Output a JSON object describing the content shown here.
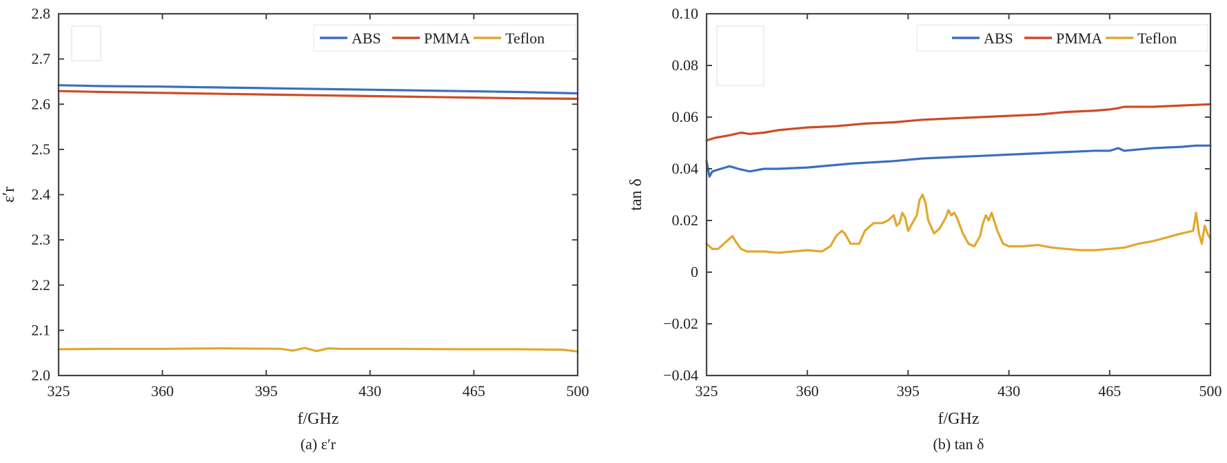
{
  "colors": {
    "abs": "#3a6fbf",
    "pmma": "#cf4a26",
    "teflon": "#e2a72e"
  },
  "chart_data": [
    {
      "type": "line",
      "caption": "(a) ε′r",
      "xlabel": "f/GHz",
      "ylabel": "ε′r",
      "xlim": [
        325,
        500
      ],
      "ylim": [
        2.0,
        2.8
      ],
      "xticks": [
        325,
        360,
        395,
        430,
        465,
        500
      ],
      "yticks": [
        2.0,
        2.1,
        2.2,
        2.3,
        2.4,
        2.5,
        2.6,
        2.7,
        2.8
      ],
      "ytick_labels": [
        "2.0",
        "2.1",
        "2.2",
        "2.3",
        "2.4",
        "2.5",
        "2.6",
        "2.7",
        "2.8"
      ],
      "legend": {
        "position": "top-right",
        "entries": [
          "ABS",
          "PMMA",
          "Teflon"
        ]
      },
      "grid": false,
      "series": [
        {
          "name": "ABS",
          "color": "#3a6fbf",
          "x": [
            325,
            340,
            360,
            380,
            400,
            420,
            440,
            460,
            480,
            500
          ],
          "y": [
            2.642,
            2.64,
            2.639,
            2.637,
            2.635,
            2.633,
            2.631,
            2.629,
            2.627,
            2.624
          ]
        },
        {
          "name": "PMMA",
          "color": "#cf4a26",
          "x": [
            325,
            340,
            360,
            380,
            400,
            420,
            440,
            460,
            480,
            500
          ],
          "y": [
            2.629,
            2.627,
            2.625,
            2.623,
            2.621,
            2.619,
            2.617,
            2.615,
            2.613,
            2.612
          ]
        },
        {
          "name": "Teflon",
          "color": "#e2a72e",
          "x": [
            325,
            340,
            360,
            380,
            400,
            404,
            408,
            412,
            416,
            420,
            440,
            460,
            480,
            495,
            500
          ],
          "y": [
            2.058,
            2.059,
            2.059,
            2.06,
            2.059,
            2.055,
            2.061,
            2.054,
            2.06,
            2.059,
            2.059,
            2.058,
            2.058,
            2.057,
            2.053
          ]
        }
      ]
    },
    {
      "type": "line",
      "caption": "(b) tan δ",
      "xlabel": "f/GHz",
      "ylabel": "tan δ",
      "xlim": [
        325,
        500
      ],
      "ylim": [
        -0.04,
        0.1
      ],
      "xticks": [
        325,
        360,
        395,
        430,
        465,
        500
      ],
      "yticks": [
        -0.04,
        -0.02,
        0,
        0.02,
        0.04,
        0.06,
        0.08,
        0.1
      ],
      "ytick_labels": [
        "−0.04",
        "−0.02",
        "0",
        "0.02",
        "0.04",
        "0.06",
        "0.08",
        "0.10"
      ],
      "legend": {
        "position": "top-right",
        "entries": [
          "ABS",
          "PMMA",
          "Teflon"
        ]
      },
      "grid": false,
      "series": [
        {
          "name": "ABS",
          "color": "#3a6fbf",
          "x": [
            325,
            326,
            327,
            330,
            333,
            336,
            340,
            345,
            350,
            360,
            375,
            390,
            400,
            410,
            420,
            430,
            440,
            450,
            460,
            465,
            468,
            470,
            480,
            490,
            495,
            500
          ],
          "y": [
            0.043,
            0.037,
            0.039,
            0.04,
            0.041,
            0.04,
            0.039,
            0.04,
            0.04,
            0.0405,
            0.042,
            0.043,
            0.044,
            0.0445,
            0.045,
            0.0455,
            0.046,
            0.0465,
            0.047,
            0.047,
            0.048,
            0.047,
            0.048,
            0.0485,
            0.049,
            0.049
          ]
        },
        {
          "name": "PMMA",
          "color": "#cf4a26",
          "x": [
            325,
            328,
            333,
            337,
            340,
            345,
            350,
            360,
            370,
            380,
            390,
            400,
            410,
            420,
            430,
            440,
            450,
            460,
            465,
            468,
            470,
            480,
            490,
            500
          ],
          "y": [
            0.051,
            0.052,
            0.053,
            0.054,
            0.0535,
            0.054,
            0.055,
            0.056,
            0.0565,
            0.0575,
            0.058,
            0.059,
            0.0595,
            0.06,
            0.0605,
            0.061,
            0.062,
            0.0625,
            0.063,
            0.0635,
            0.064,
            0.064,
            0.0645,
            0.065
          ]
        },
        {
          "name": "Teflon",
          "color": "#e2a72e",
          "x": [
            325,
            327,
            329,
            331,
            333,
            334,
            335,
            337,
            339,
            341,
            345,
            350,
            355,
            360,
            365,
            368,
            370,
            372,
            373,
            375,
            378,
            380,
            383,
            386,
            388,
            390,
            391,
            392,
            393,
            394,
            395,
            396,
            398,
            399,
            400,
            401,
            402,
            404,
            406,
            408,
            409,
            410,
            411,
            412,
            414,
            416,
            418,
            420,
            421,
            422,
            423,
            424,
            426,
            428,
            430,
            435,
            440,
            445,
            450,
            455,
            460,
            465,
            470,
            475,
            480,
            485,
            490,
            494,
            495,
            496,
            497,
            498,
            499,
            500
          ],
          "y": [
            0.011,
            0.009,
            0.009,
            0.011,
            0.013,
            0.014,
            0.012,
            0.009,
            0.008,
            0.008,
            0.008,
            0.0075,
            0.008,
            0.0085,
            0.008,
            0.01,
            0.014,
            0.016,
            0.015,
            0.011,
            0.011,
            0.016,
            0.019,
            0.019,
            0.02,
            0.022,
            0.018,
            0.019,
            0.023,
            0.021,
            0.016,
            0.018,
            0.022,
            0.028,
            0.03,
            0.027,
            0.02,
            0.015,
            0.017,
            0.021,
            0.024,
            0.022,
            0.023,
            0.021,
            0.015,
            0.011,
            0.01,
            0.014,
            0.019,
            0.022,
            0.02,
            0.023,
            0.016,
            0.011,
            0.01,
            0.01,
            0.0105,
            0.0095,
            0.009,
            0.0085,
            0.0085,
            0.009,
            0.0095,
            0.011,
            0.012,
            0.0135,
            0.015,
            0.016,
            0.023,
            0.015,
            0.011,
            0.018,
            0.015,
            0.013
          ]
        }
      ]
    }
  ]
}
